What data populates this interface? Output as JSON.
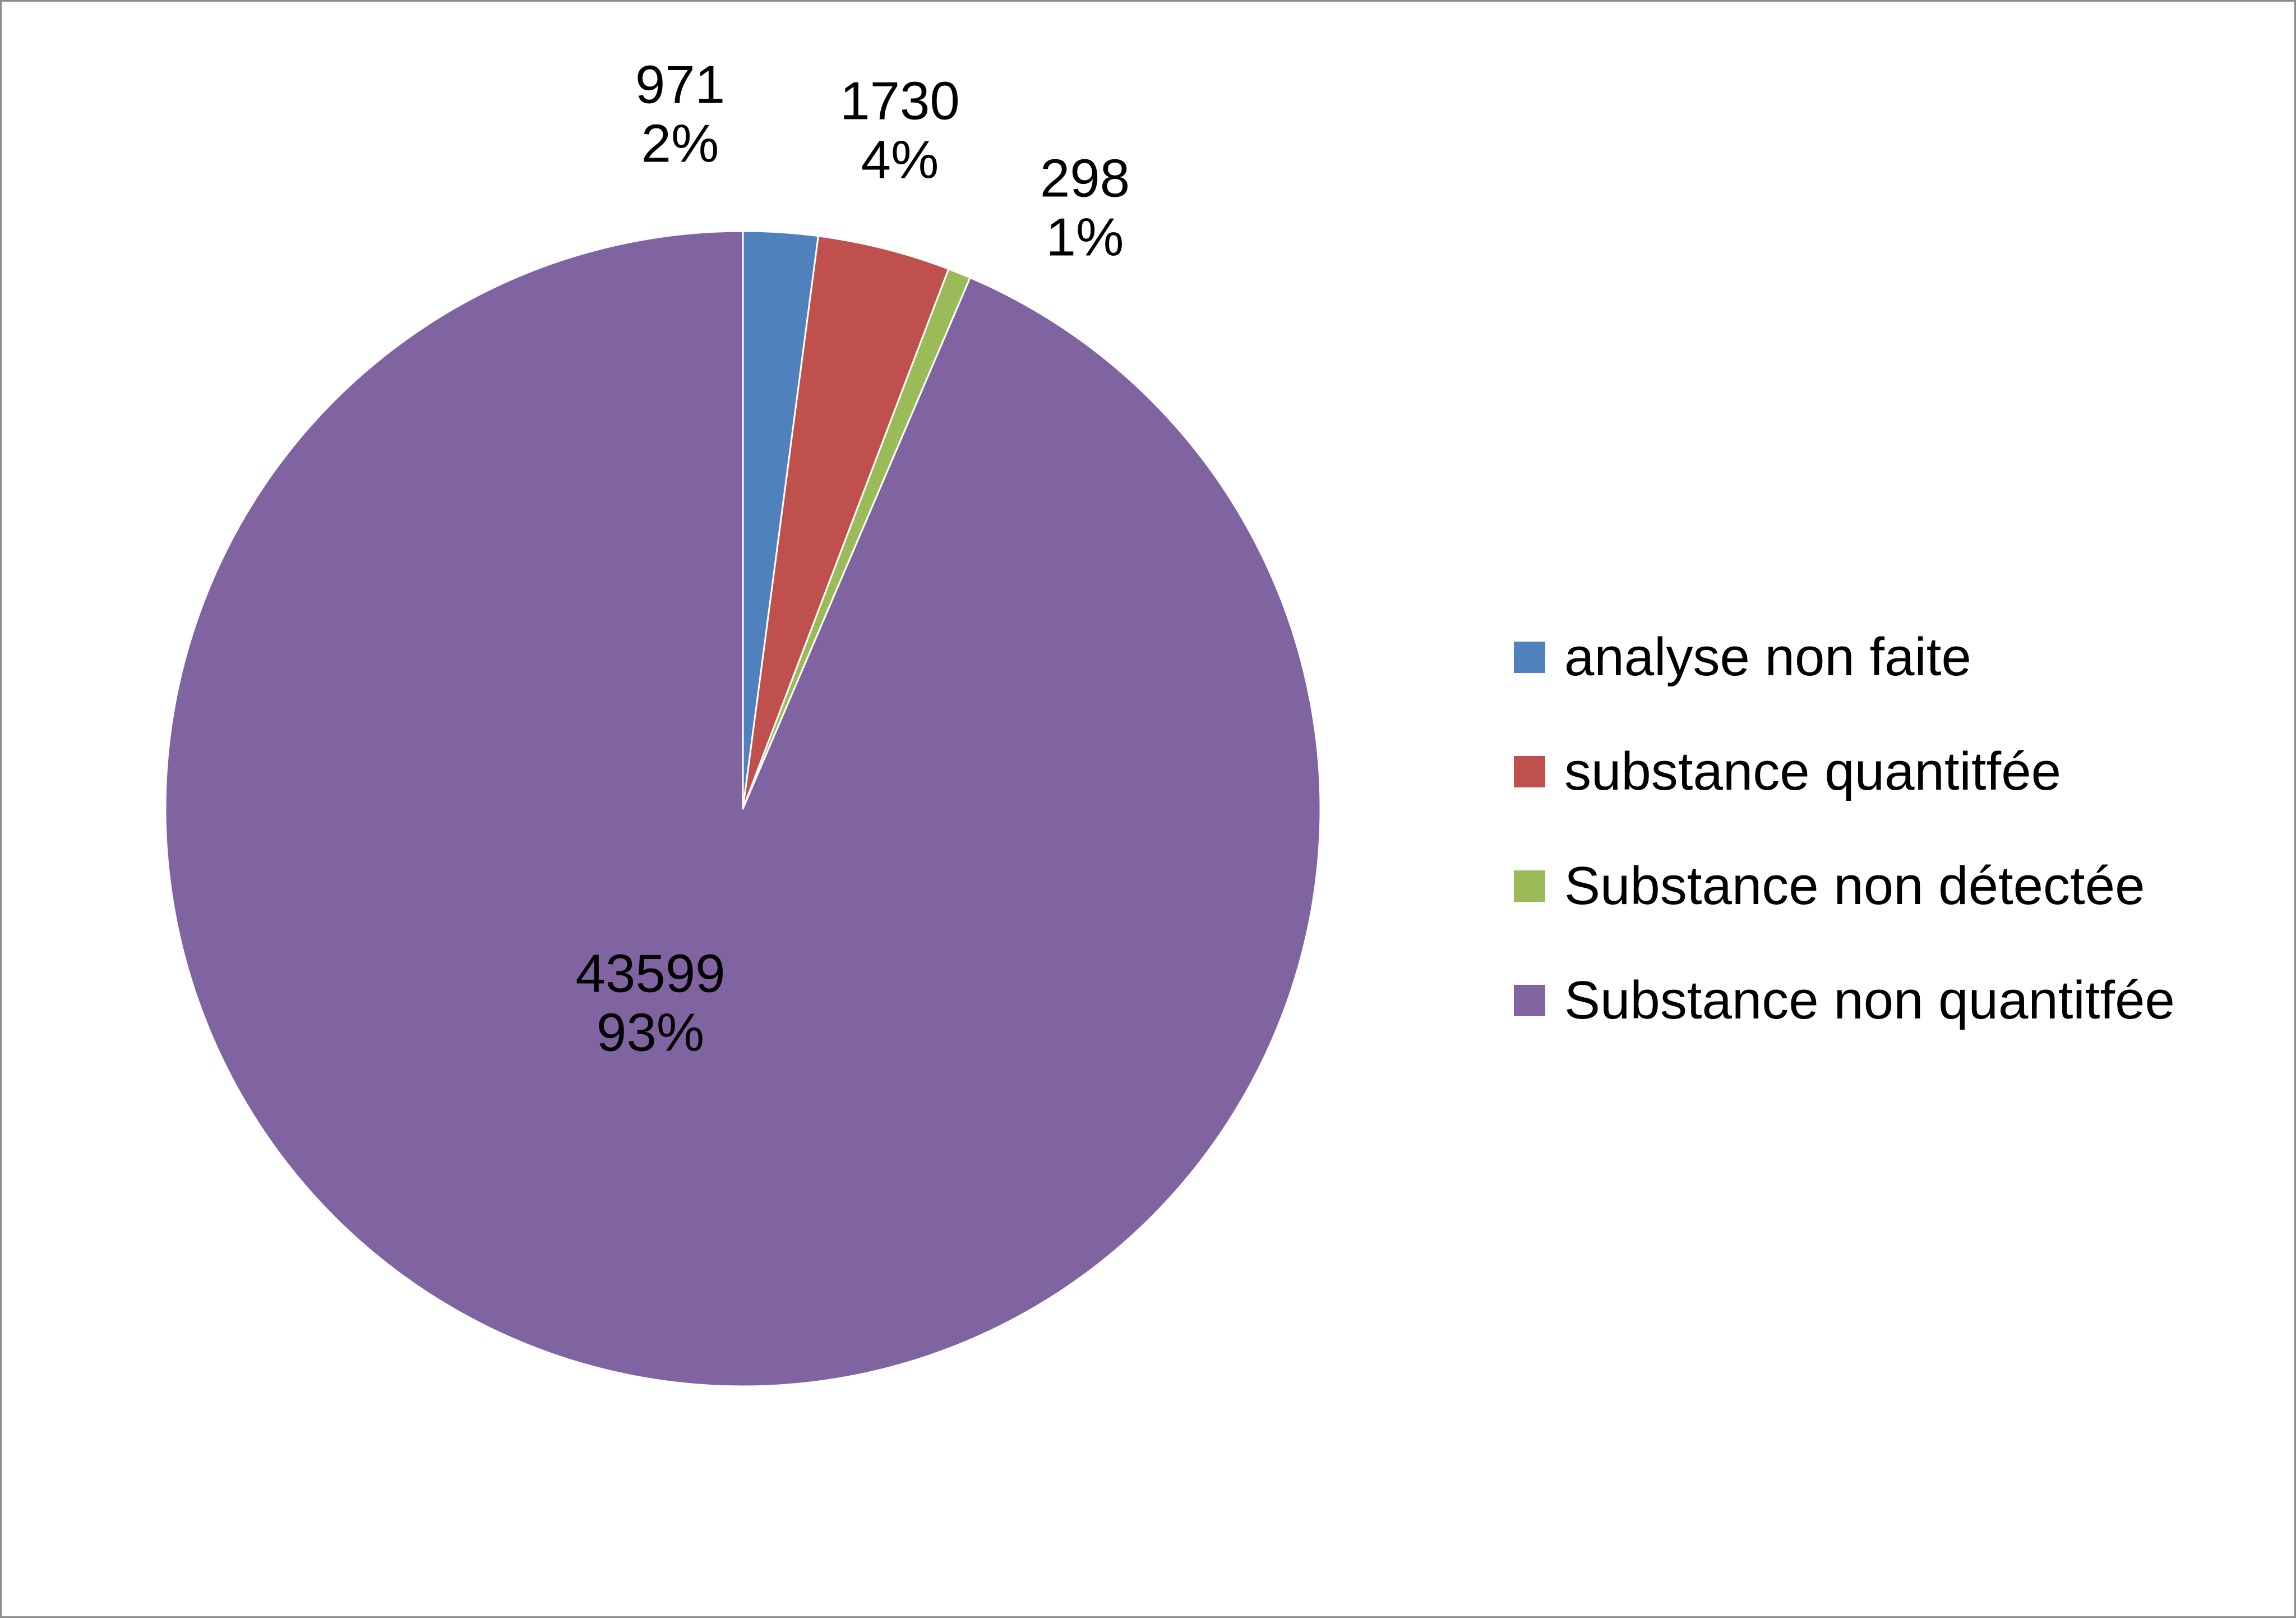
{
  "chart_data": {
    "type": "pie",
    "title": "",
    "legend_position": "right",
    "start_angle": "top",
    "direction": "clockwise",
    "slices": [
      {
        "name": "analyse non faite",
        "value": 971,
        "percent_label": "2%",
        "color": "#4F81BD"
      },
      {
        "name": "substance quantitfée",
        "value": 1730,
        "percent_label": "4%",
        "color": "#C0504D"
      },
      {
        "name": "Substance non détectée",
        "value": 298,
        "percent_label": "1%",
        "color": "#9BBB59"
      },
      {
        "name": "Substance non quantitfée",
        "value": 43599,
        "percent_label": "93%",
        "color": "#8064A2"
      }
    ]
  }
}
